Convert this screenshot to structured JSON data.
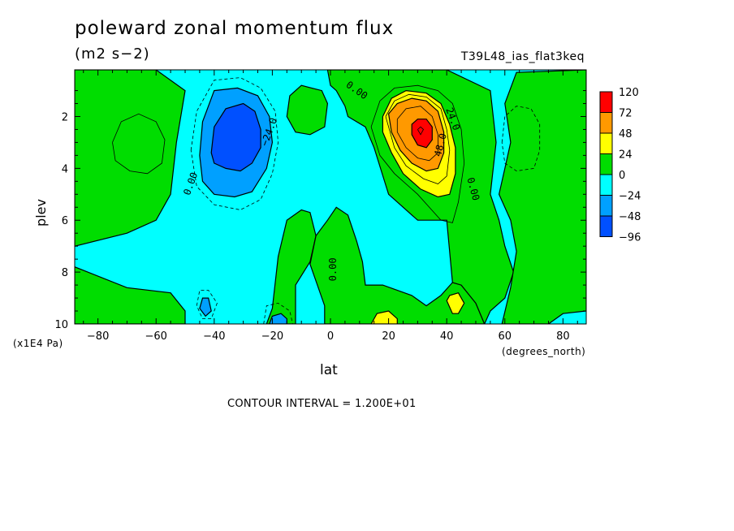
{
  "chart_data": {
    "type": "heatmap",
    "title": "poleward zonal momentum flux",
    "units": "(m2 s−2)",
    "dataset": "T39L48_ias_flat3keq",
    "xlabel": "lat",
    "ylabel": "plev",
    "x_units": "(degrees_north)",
    "y_units": "(x1E4 Pa)",
    "footer": "CONTOUR INTERVAL = 1.200E+01",
    "xlim": [
      -88,
      88
    ],
    "ylim": [
      10,
      0.2
    ],
    "x_ticks": [
      -80,
      -60,
      -40,
      -20,
      0,
      20,
      40,
      60,
      80
    ],
    "x_tick_labels": [
      "−80",
      "−60",
      "−40",
      "−20",
      "0",
      "20",
      "40",
      "60",
      "80"
    ],
    "y_ticks": [
      2,
      4,
      6,
      8,
      10
    ],
    "y_tick_labels": [
      "2",
      "4",
      "6",
      "8",
      "10"
    ],
    "legend": {
      "levels": [
        "120",
        "72",
        "48",
        "24",
        "0",
        "−24",
        "−48",
        "−96"
      ],
      "colors": [
        "#ff0000",
        "#ff9900",
        "#ffff00",
        "#00dd00",
        "#00ffff",
        "#00a0ff",
        "#0050ff"
      ]
    },
    "contour_labels": [
      {
        "text": "−24.0",
        "lat": -21,
        "plev": 2.6,
        "rotate": -70
      },
      {
        "text": "0.00",
        "lat": -48,
        "plev": 4.6,
        "rotate": -70
      },
      {
        "text": "0.00",
        "lat": 9,
        "plev": 1.0,
        "rotate": 35
      },
      {
        "text": "24.0",
        "lat": 42,
        "plev": 2.1,
        "rotate": 70
      },
      {
        "text": "48.0",
        "lat": 38,
        "plev": 3.1,
        "rotate": -75
      },
      {
        "text": "0.00",
        "lat": 49,
        "plev": 4.8,
        "rotate": 75
      },
      {
        "text": "0.00",
        "lat": 1,
        "plev": 7.9,
        "rotate": -90
      }
    ],
    "regions": [
      {
        "level": "0 to 24",
        "color": "#00dd00",
        "outline": [
          [
            -88,
            0.2
          ],
          [
            -60,
            0.2
          ],
          [
            -50,
            1.0
          ],
          [
            -53,
            3.0
          ],
          [
            -55,
            5.0
          ],
          [
            -60,
            6.0
          ],
          [
            -70,
            6.5
          ],
          [
            -88,
            7.0
          ],
          [
            -88,
            0.2
          ]
        ]
      },
      {
        "level": "0 to 24",
        "color": "#00dd00",
        "outline": [
          [
            -88,
            7.8
          ],
          [
            -70,
            8.6
          ],
          [
            -55,
            8.8
          ],
          [
            -50,
            9.5
          ],
          [
            -50,
            10
          ],
          [
            -88,
            10
          ],
          [
            -88,
            7.8
          ]
        ]
      },
      {
        "level": "0 to 24",
        "color": "#00dd00",
        "outline": [
          [
            -22,
            10
          ],
          [
            -20,
            9.4
          ],
          [
            -18,
            7.4
          ],
          [
            -15,
            6.0
          ],
          [
            -10,
            5.6
          ],
          [
            -7,
            5.7
          ],
          [
            -5,
            6.6
          ],
          [
            -7,
            7.6
          ],
          [
            -12,
            8.5
          ],
          [
            -12,
            10
          ],
          [
            -22,
            10
          ]
        ]
      },
      {
        "level": "0 to 24",
        "color": "#00dd00",
        "outline": [
          [
            -14,
            1.2
          ],
          [
            -10,
            0.8
          ],
          [
            -3,
            1.0
          ],
          [
            -1,
            1.5
          ],
          [
            -2,
            2.4
          ],
          [
            -7,
            2.7
          ],
          [
            -12,
            2.6
          ],
          [
            -15,
            2.0
          ],
          [
            -14,
            1.2
          ]
        ]
      },
      {
        "level": "0 to 24",
        "color": "#00dd00",
        "outline": [
          [
            -2,
            10
          ],
          [
            -2,
            9.3
          ],
          [
            -7,
            7.7
          ],
          [
            -5,
            6.6
          ],
          [
            -1,
            6.0
          ],
          [
            2,
            5.5
          ],
          [
            6,
            5.8
          ],
          [
            9,
            6.8
          ],
          [
            11,
            7.6
          ],
          [
            12,
            8.5
          ],
          [
            18,
            8.5
          ],
          [
            28,
            8.9
          ],
          [
            33,
            9.3
          ],
          [
            38,
            8.9
          ],
          [
            42,
            8.4
          ],
          [
            45,
            8.5
          ],
          [
            50,
            9.2
          ],
          [
            53,
            10
          ],
          [
            -2,
            10
          ]
        ]
      },
      {
        "level": "0 to 24",
        "color": "#00dd00",
        "outline": [
          [
            -1,
            0.2
          ],
          [
            40,
            0.2
          ],
          [
            55,
            1.0
          ],
          [
            57,
            3.0
          ],
          [
            55,
            5.0
          ],
          [
            58,
            6.0
          ],
          [
            60,
            7.0
          ],
          [
            63,
            8.0
          ],
          [
            60,
            9.0
          ],
          [
            55,
            9.5
          ],
          [
            53,
            10
          ],
          [
            50,
            9.2
          ],
          [
            45,
            8.5
          ],
          [
            42,
            8.4
          ],
          [
            40,
            6.0
          ],
          [
            30,
            6.0
          ],
          [
            20,
            5.0
          ],
          [
            15,
            3.2
          ],
          [
            12,
            2.4
          ],
          [
            6,
            2.0
          ],
          [
            5,
            1.6
          ],
          [
            2,
            1.0
          ],
          [
            0,
            0.8
          ],
          [
            -1,
            0.2
          ]
        ]
      },
      {
        "level": "0 to 24",
        "color": "#00dd00",
        "outline": [
          [
            59,
            10
          ],
          [
            62,
            8.6
          ],
          [
            64,
            7.2
          ],
          [
            62,
            6.0
          ],
          [
            58,
            5.0
          ],
          [
            60,
            4.0
          ],
          [
            62,
            3.0
          ],
          [
            60,
            1.5
          ],
          [
            64,
            0.3
          ],
          [
            88,
            0.2
          ],
          [
            88,
            9.5
          ],
          [
            80,
            9.6
          ],
          [
            75,
            10
          ],
          [
            59,
            10
          ]
        ]
      },
      {
        "level": "-24 to -48",
        "color": "#00a0ff",
        "outline": [
          [
            -45,
            3.5
          ],
          [
            -44,
            2.2
          ],
          [
            -40,
            1.0
          ],
          [
            -32,
            0.9
          ],
          [
            -25,
            1.2
          ],
          [
            -21,
            2.0
          ],
          [
            -20,
            3.0
          ],
          [
            -22,
            4.0
          ],
          [
            -27,
            4.9
          ],
          [
            -33,
            5.1
          ],
          [
            -40,
            5.0
          ],
          [
            -44,
            4.5
          ],
          [
            -45,
            3.5
          ]
        ]
      },
      {
        "level": "-24 to -48",
        "color": "#00a0ff",
        "outline": [
          [
            -45,
            9.4
          ],
          [
            -44,
            9.0
          ],
          [
            -42,
            9.0
          ],
          [
            -41,
            9.5
          ],
          [
            -43,
            9.7
          ],
          [
            -45,
            9.4
          ]
        ]
      },
      {
        "level": "-24 to -48",
        "color": "#00a0ff",
        "outline": [
          [
            -21,
            10
          ],
          [
            -20,
            9.7
          ],
          [
            -17,
            9.6
          ],
          [
            -15,
            9.8
          ],
          [
            -15,
            10
          ],
          [
            -21,
            10
          ]
        ]
      },
      {
        "level": "-48 to -96",
        "color": "#0050ff",
        "outline": [
          [
            -41,
            3.4
          ],
          [
            -40,
            2.4
          ],
          [
            -36,
            1.7
          ],
          [
            -30,
            1.5
          ],
          [
            -26,
            1.8
          ],
          [
            -24,
            2.5
          ],
          [
            -24,
            3.2
          ],
          [
            -27,
            3.8
          ],
          [
            -31,
            4.1
          ],
          [
            -36,
            4.0
          ],
          [
            -40,
            3.8
          ],
          [
            -41,
            3.4
          ]
        ]
      },
      {
        "level": "24 to 48",
        "color": "#ffff00",
        "outline": [
          [
            18,
            2.0
          ],
          [
            21,
            1.3
          ],
          [
            26,
            1.0
          ],
          [
            33,
            1.1
          ],
          [
            38,
            1.5
          ],
          [
            41,
            2.3
          ],
          [
            43,
            3.2
          ],
          [
            43,
            4.2
          ],
          [
            41,
            5.0
          ],
          [
            37,
            5.1
          ],
          [
            31,
            4.8
          ],
          [
            25,
            4.2
          ],
          [
            21,
            3.4
          ],
          [
            18,
            2.6
          ],
          [
            18,
            2.0
          ]
        ]
      },
      {
        "level": "24 to 48",
        "color": "#ffff00",
        "outline": [
          [
            14,
            10
          ],
          [
            16,
            9.6
          ],
          [
            20,
            9.5
          ],
          [
            23,
            9.8
          ],
          [
            23,
            10
          ],
          [
            14,
            10
          ]
        ]
      },
      {
        "level": "24 to 48",
        "color": "#ffff00",
        "outline": [
          [
            40,
            9.1
          ],
          [
            41,
            8.9
          ],
          [
            44,
            8.8
          ],
          [
            46,
            9.2
          ],
          [
            44,
            9.6
          ],
          [
            42,
            9.6
          ],
          [
            40,
            9.1
          ]
        ]
      },
      {
        "level": "48 to 72",
        "color": "#ff9900",
        "outline": [
          [
            20,
            1.9
          ],
          [
            23,
            1.5
          ],
          [
            28,
            1.3
          ],
          [
            33,
            1.4
          ],
          [
            37,
            1.8
          ],
          [
            39,
            2.6
          ],
          [
            39,
            3.4
          ],
          [
            37,
            4.0
          ],
          [
            33,
            4.1
          ],
          [
            28,
            3.8
          ],
          [
            24,
            3.3
          ],
          [
            21,
            2.6
          ],
          [
            20,
            1.9
          ]
        ]
      },
      {
        "level": "72 to 120",
        "color": "#ff0000",
        "outline": [
          [
            28,
            2.3
          ],
          [
            30,
            2.1
          ],
          [
            33,
            2.1
          ],
          [
            35,
            2.4
          ],
          [
            35,
            2.9
          ],
          [
            33,
            3.2
          ],
          [
            30,
            3.1
          ],
          [
            28,
            2.7
          ],
          [
            28,
            2.3
          ]
        ]
      }
    ],
    "dashed_contours": [
      {
        "level": "-24",
        "outline": [
          [
            -48,
            3.3
          ],
          [
            -46,
            1.8
          ],
          [
            -40,
            0.6
          ],
          [
            -31,
            0.5
          ],
          [
            -24,
            0.9
          ],
          [
            -19,
            1.8
          ],
          [
            -18,
            3.0
          ],
          [
            -20,
            4.2
          ],
          [
            -24,
            5.2
          ],
          [
            -31,
            5.6
          ],
          [
            -40,
            5.4
          ],
          [
            -46,
            4.7
          ],
          [
            -48,
            3.3
          ]
        ]
      },
      {
        "level": "-12",
        "outline": [
          [
            -46,
            9.3
          ],
          [
            -45,
            8.7
          ],
          [
            -42,
            8.7
          ],
          [
            -39,
            9.2
          ],
          [
            -41,
            9.8
          ],
          [
            -44,
            9.8
          ],
          [
            -46,
            9.3
          ]
        ]
      },
      {
        "level": "-12",
        "outline": [
          [
            -23,
            10
          ],
          [
            -22,
            9.3
          ],
          [
            -18,
            9.2
          ],
          [
            -14,
            9.5
          ],
          [
            -13,
            10
          ]
        ]
      },
      {
        "level": "-12",
        "outline": [
          [
            59,
            3.0
          ],
          [
            60,
            2.0
          ],
          [
            64,
            1.6
          ],
          [
            69,
            1.7
          ],
          [
            72,
            2.3
          ],
          [
            72,
            3.3
          ],
          [
            70,
            4.0
          ],
          [
            64,
            4.1
          ],
          [
            60,
            3.8
          ],
          [
            59,
            3.0
          ]
        ]
      },
      {
        "level": "-12",
        "outline": [
          [
            -88,
            7.8
          ],
          [
            -88,
            10
          ]
        ]
      }
    ],
    "solid_contours": [
      {
        "level": "12",
        "outline": [
          [
            -75,
            3.0
          ],
          [
            -72,
            2.2
          ],
          [
            -66,
            1.9
          ],
          [
            -60,
            2.2
          ],
          [
            -57,
            2.9
          ],
          [
            -58,
            3.8
          ],
          [
            -63,
            4.2
          ],
          [
            -69,
            4.1
          ],
          [
            -74,
            3.7
          ],
          [
            -75,
            3.0
          ]
        ]
      },
      {
        "level": "12",
        "outline": [
          [
            14,
            2.4
          ],
          [
            17,
            1.4
          ],
          [
            22,
            0.9
          ],
          [
            30,
            0.8
          ],
          [
            37,
            1.0
          ],
          [
            42,
            1.5
          ],
          [
            45,
            2.5
          ],
          [
            46,
            3.8
          ],
          [
            44,
            5.3
          ],
          [
            42,
            6.1
          ],
          [
            38,
            6.0
          ],
          [
            30,
            5.0
          ],
          [
            22,
            4.2
          ],
          [
            17,
            3.5
          ],
          [
            14,
            2.4
          ]
        ]
      },
      {
        "level": "36",
        "outline": [
          [
            19,
            2.0
          ],
          [
            22,
            1.4
          ],
          [
            27,
            1.15
          ],
          [
            33,
            1.25
          ],
          [
            38,
            1.7
          ],
          [
            40,
            2.5
          ],
          [
            41,
            3.3
          ],
          [
            40,
            4.3
          ],
          [
            37,
            4.6
          ],
          [
            32,
            4.4
          ],
          [
            26,
            3.9
          ],
          [
            22,
            3.2
          ],
          [
            19,
            2.0
          ]
        ]
      },
      {
        "level": "60",
        "outline": [
          [
            23,
            2.1
          ],
          [
            26,
            1.7
          ],
          [
            31,
            1.6
          ],
          [
            35,
            2.0
          ],
          [
            37,
            2.7
          ],
          [
            37,
            3.4
          ],
          [
            34,
            3.7
          ],
          [
            30,
            3.6
          ],
          [
            26,
            3.2
          ],
          [
            23,
            2.6
          ],
          [
            23,
            2.1
          ]
        ]
      },
      {
        "level": "96",
        "outline": [
          [
            30,
            2.5
          ],
          [
            31,
            2.4
          ],
          [
            32,
            2.5
          ],
          [
            31,
            2.7
          ],
          [
            30,
            2.5
          ]
        ]
      }
    ]
  }
}
